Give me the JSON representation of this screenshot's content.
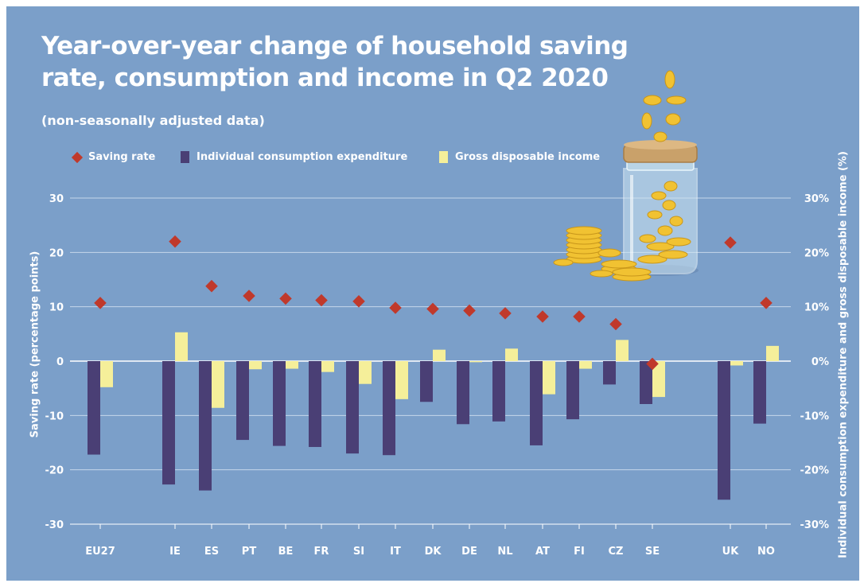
{
  "chart_data": {
    "type": "bar",
    "title": "Year-over-year change of household saving rate, consumption and income in Q2 2020",
    "subtitle": "(non-seasonally adjusted data)",
    "ylabel_left": "Saving rate (percentage points)",
    "ylabel_right": "Individual consumption expenditure and gross disposable income (%)",
    "ylim_left": [
      -30,
      30
    ],
    "ylim_right": [
      -30,
      30
    ],
    "yticks_left": [
      "30",
      "20",
      "10",
      "0",
      "-10",
      "-20",
      "-30"
    ],
    "yticks_right": [
      "30%",
      "20%",
      "10%",
      "0%",
      "-10%",
      "-20%",
      "-30%"
    ],
    "grid": true,
    "legend_position": "top-left",
    "categories": [
      "EU27",
      "IE",
      "ES",
      "PT",
      "BE",
      "FR",
      "SI",
      "IT",
      "DK",
      "DE",
      "NL",
      "AT",
      "FI",
      "CZ",
      "SE",
      "UK",
      "NO"
    ],
    "series": [
      {
        "name": "Saving rate",
        "kind": "marker",
        "color": "#c0392b",
        "values": [
          10.7,
          22.0,
          13.8,
          12.0,
          11.5,
          11.2,
          11.0,
          9.8,
          9.6,
          9.3,
          8.8,
          8.2,
          8.2,
          6.8,
          -0.5,
          21.8,
          10.7
        ]
      },
      {
        "name": "Individual consumption expenditure",
        "kind": "bar",
        "color": "#4a3f75",
        "values": [
          -17.2,
          -22.7,
          -23.8,
          -14.5,
          -15.6,
          -15.8,
          -17.0,
          -17.3,
          -7.5,
          -11.6,
          -11.1,
          -15.5,
          -10.7,
          -4.3,
          -7.9,
          -25.5,
          -11.5
        ]
      },
      {
        "name": "Gross disposable income",
        "kind": "bar",
        "color": "#f5ef9a",
        "values": [
          -4.8,
          5.3,
          -8.6,
          -1.5,
          -1.4,
          -2.0,
          -4.2,
          -7.0,
          2.1,
          -0.2,
          2.3,
          -6.1,
          -1.4,
          3.9,
          -6.6,
          -0.8,
          2.8
        ]
      }
    ]
  }
}
